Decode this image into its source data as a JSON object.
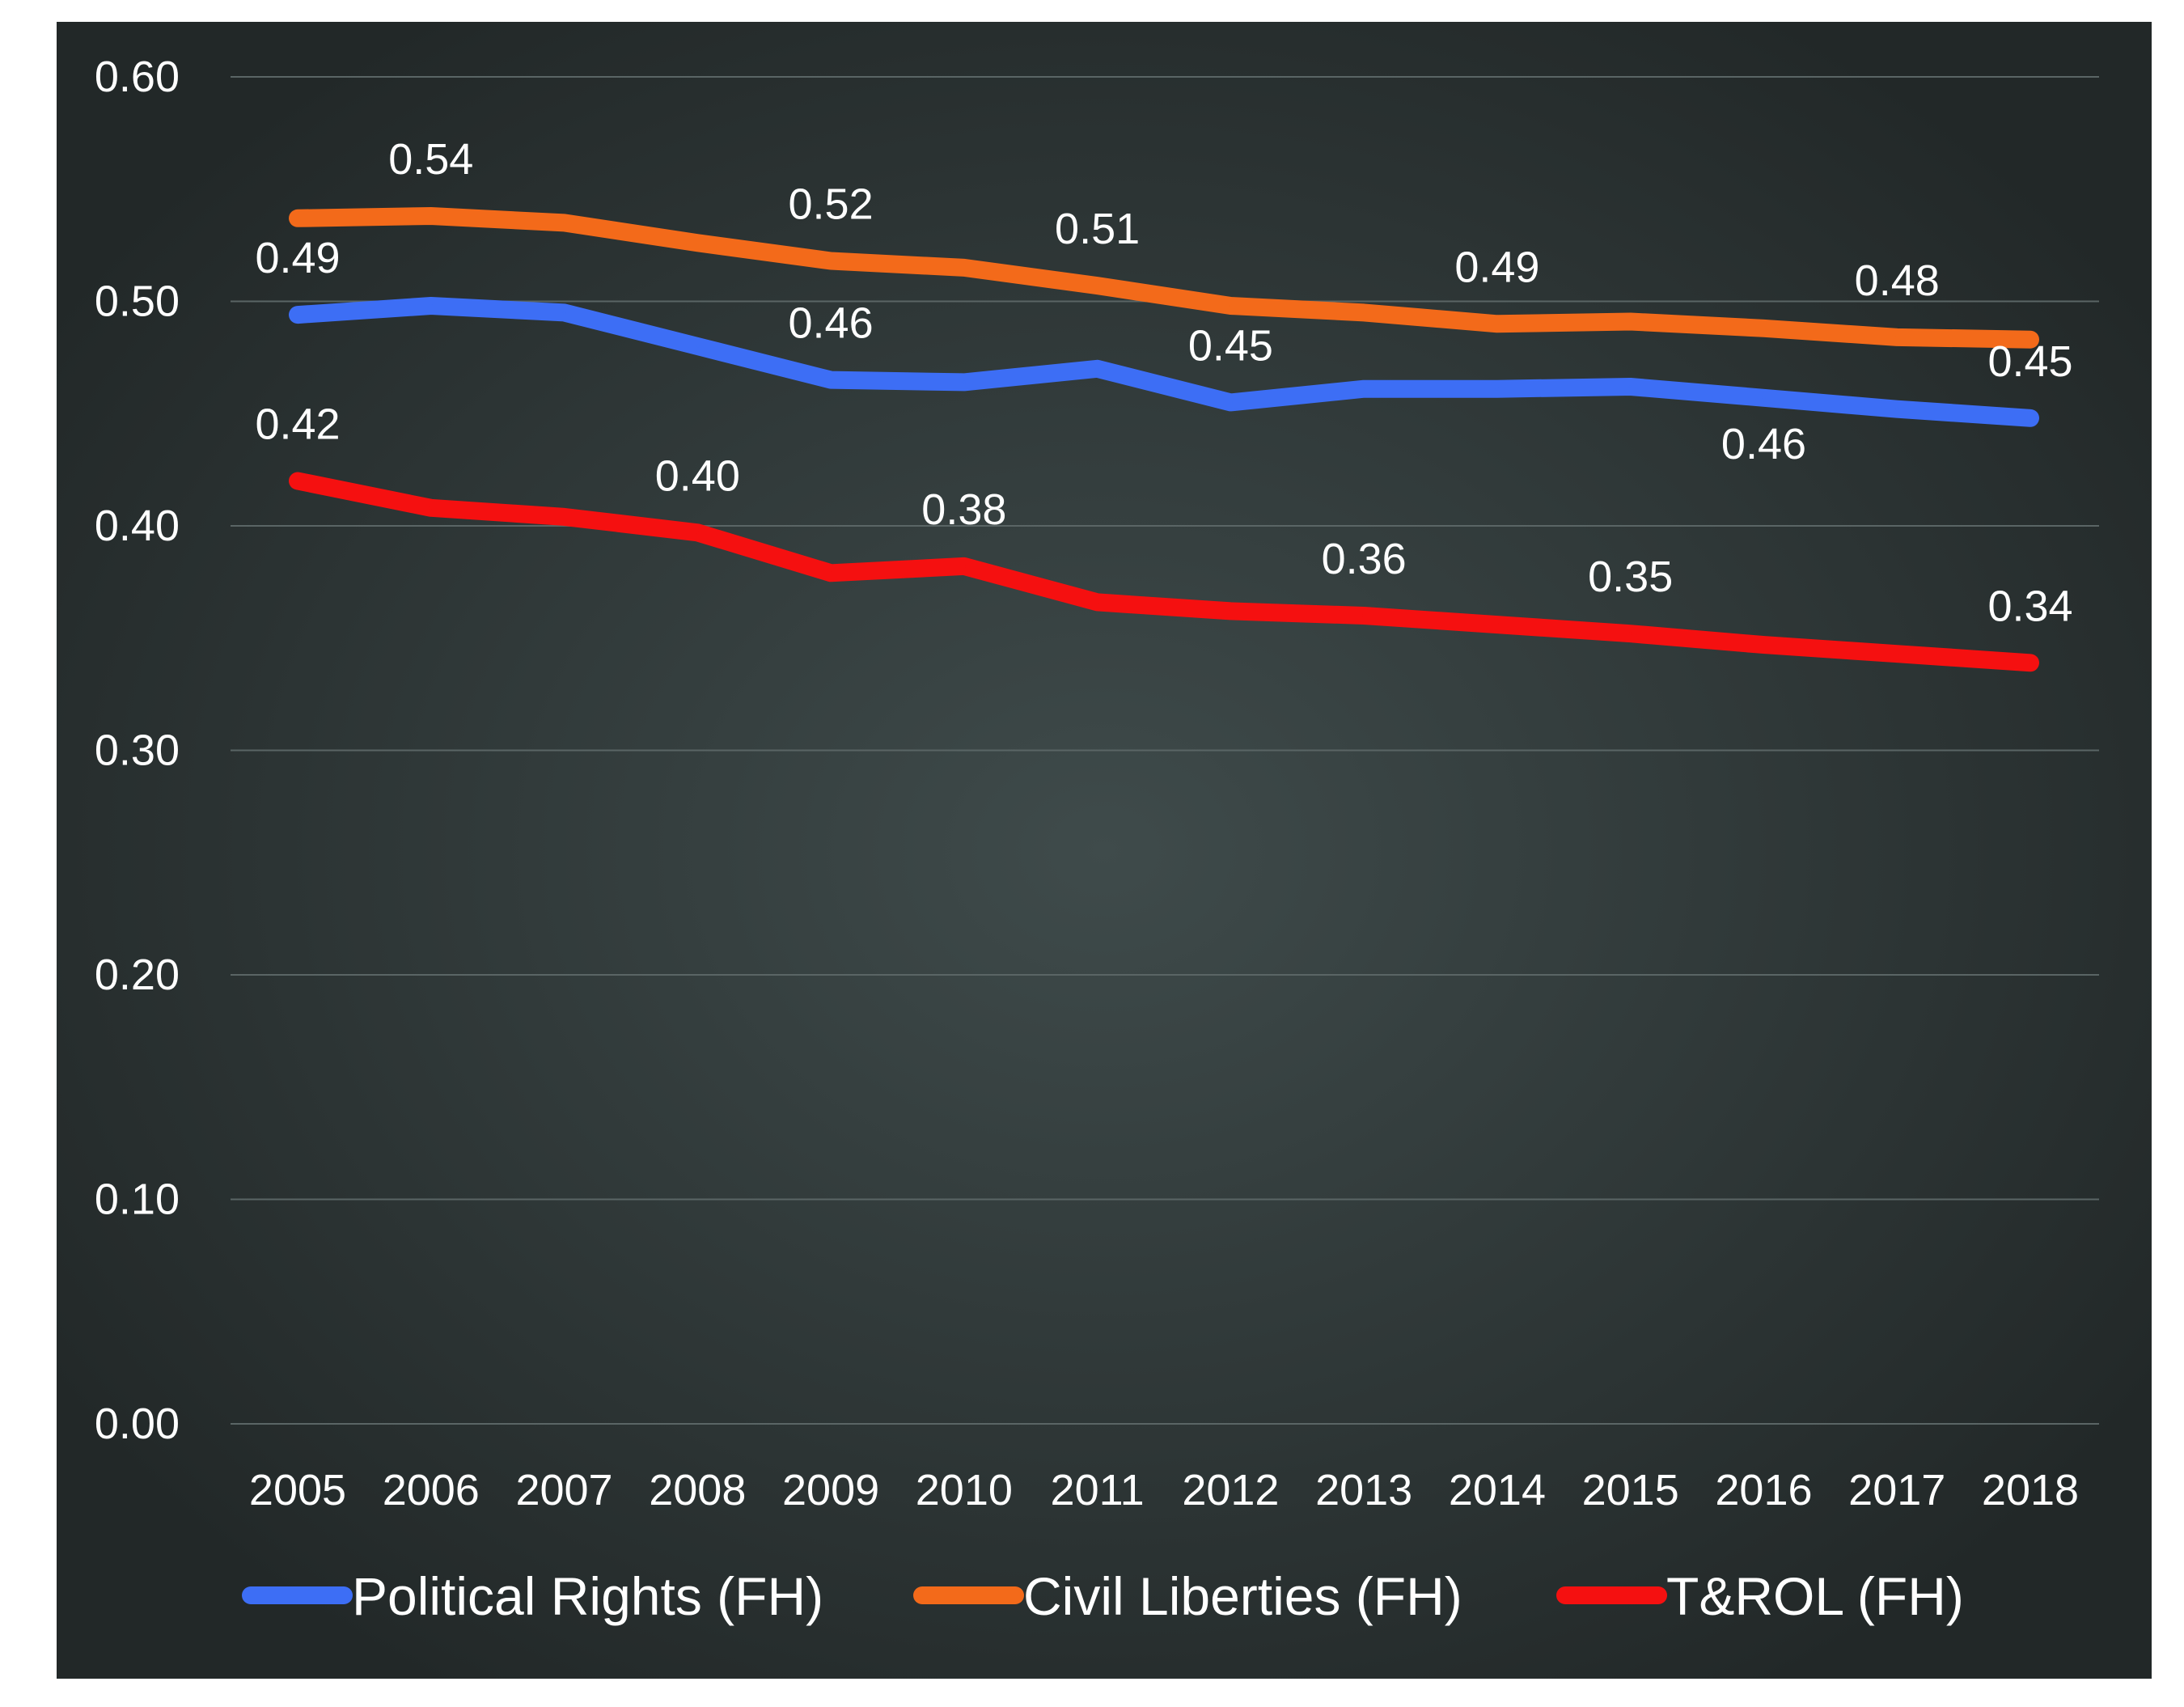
{
  "chart_data": {
    "type": "line",
    "x": [
      "2005",
      "2006",
      "2007",
      "2008",
      "2009",
      "2010",
      "2011",
      "2012",
      "2013",
      "2014",
      "2015",
      "2016",
      "2017",
      "2018"
    ],
    "ylim": [
      0,
      0.6
    ],
    "yticks": [
      "0.00",
      "0.10",
      "0.20",
      "0.30",
      "0.40",
      "0.50",
      "0.60"
    ],
    "grid": true,
    "legend_position": "bottom",
    "background": "#2b3233",
    "series": [
      {
        "name": "Political Rights (FH)",
        "color": "#3d6ef5",
        "values": [
          0.494,
          0.498,
          0.495,
          0.48,
          0.465,
          0.464,
          0.47,
          0.455,
          0.461,
          0.461,
          0.462,
          0.457,
          0.452,
          0.448
        ],
        "labels": [
          {
            "index": 0,
            "text": "0.49",
            "pos": "above"
          },
          {
            "index": 4,
            "text": "0.46",
            "pos": "above"
          },
          {
            "index": 7,
            "text": "0.45",
            "pos": "above"
          },
          {
            "index": 11,
            "text": "0.46",
            "pos": "below"
          },
          {
            "index": 13,
            "text": "0.45",
            "pos": "above"
          }
        ]
      },
      {
        "name": "Civil Liberties (FH)",
        "color": "#f36a1a",
        "values": [
          0.537,
          0.538,
          0.535,
          0.526,
          0.518,
          0.515,
          0.507,
          0.498,
          0.495,
          0.49,
          0.491,
          0.488,
          0.484,
          0.483
        ],
        "labels": [
          {
            "index": 1,
            "text": "0.54",
            "pos": "above"
          },
          {
            "index": 4,
            "text": "0.52",
            "pos": "above"
          },
          {
            "index": 6,
            "text": "0.51",
            "pos": "above"
          },
          {
            "index": 9,
            "text": "0.49",
            "pos": "above"
          },
          {
            "index": 12,
            "text": "0.48",
            "pos": "above"
          }
        ]
      },
      {
        "name": "T&ROL (FH)",
        "color": "#f51010",
        "values": [
          0.42,
          0.408,
          0.404,
          0.397,
          0.379,
          0.382,
          0.366,
          0.362,
          0.36,
          0.356,
          0.352,
          0.347,
          0.343,
          0.339
        ],
        "labels": [
          {
            "index": 0,
            "text": "0.42",
            "pos": "above"
          },
          {
            "index": 3,
            "text": "0.40",
            "pos": "above"
          },
          {
            "index": 5,
            "text": "0.38",
            "pos": "above"
          },
          {
            "index": 8,
            "text": "0.36",
            "pos": "above"
          },
          {
            "index": 10,
            "text": "0.35",
            "pos": "above"
          },
          {
            "index": 13,
            "text": "0.34",
            "pos": "above"
          }
        ]
      }
    ]
  }
}
